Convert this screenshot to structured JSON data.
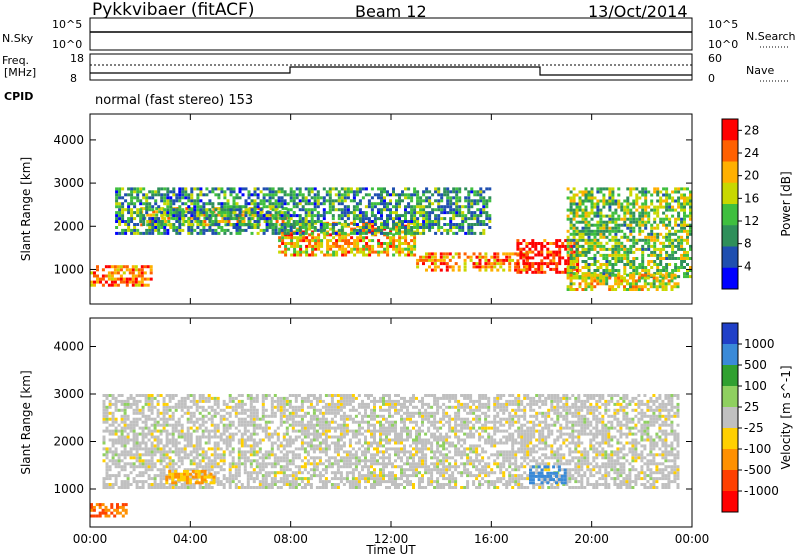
{
  "header": {
    "radar": "Pykkvibaer (fitACF)",
    "beam": "Beam 12",
    "date": "13/Oct/2014"
  },
  "top_panels": {
    "nsky_label": "N.Sky",
    "nsky_ticks": [
      "10^5",
      "10^0"
    ],
    "nsearch_label": "N.Search",
    "nsearch_ticks": [
      "10^5",
      "10^0"
    ],
    "freq_label": "Freq.",
    "freq_unit": "[MHz]",
    "freq_ticks": [
      "18",
      "8"
    ],
    "nave_label": "Nave",
    "nave_ticks": [
      "60",
      "0"
    ],
    "cpid_label": "CPID",
    "cpid_text": "normal (fast stereo) 153"
  },
  "colors": {
    "power_scale": [
      "#0000ff",
      "#1f4fb0",
      "#2f8f5a",
      "#3fbf3f",
      "#c8d800",
      "#ffb000",
      "#ff6000",
      "#ff0000"
    ],
    "velocity_scale": [
      "#2040c8",
      "#3a8ad8",
      "#30a030",
      "#8fd060",
      "#c0c0c0",
      "#ffd000",
      "#ff9000",
      "#ff4000",
      "#ff0000"
    ]
  },
  "chart_data": [
    {
      "type": "heatmap",
      "panel": "power",
      "ylabel": "Slant Range [km]",
      "xlabel": "Time UT",
      "yticks": [
        "1000",
        "2000",
        "3000",
        "4000"
      ],
      "ylim": [
        200,
        4600
      ],
      "xticks": [
        "00:00",
        "04:00",
        "08:00",
        "12:00",
        "16:00",
        "20:00",
        "00:00"
      ],
      "xlim_hours": [
        0,
        24
      ],
      "colorbar": {
        "label": "Power [dB]",
        "ticks": [
          "4",
          "8",
          "12",
          "16",
          "20",
          "24",
          "28"
        ],
        "range": [
          0,
          30
        ]
      },
      "backscatter_bands": [
        {
          "name": "near_band",
          "start_h": 0.0,
          "end_h": 2.5,
          "range_km": [
            600,
            1100
          ],
          "power_db": 24
        },
        {
          "name": "main_band_a",
          "start_h": 2.0,
          "end_h": 8.0,
          "range_km": [
            2000,
            2450
          ],
          "power_db": 18
        },
        {
          "name": "main_band_b",
          "start_h": 7.5,
          "end_h": 13.0,
          "range_km": [
            1300,
            2100
          ],
          "power_db": 20
        },
        {
          "name": "main_band_c",
          "start_h": 13.0,
          "end_h": 17.5,
          "range_km": [
            950,
            1400
          ],
          "power_db": 22
        },
        {
          "name": "enhanced_patch",
          "start_h": 17.0,
          "end_h": 19.5,
          "range_km": [
            900,
            1700
          ],
          "power_db": 28
        },
        {
          "name": "upper_diffuse",
          "start_h": 1.0,
          "end_h": 16.0,
          "range_km": [
            1800,
            2900
          ],
          "power_db": 10
        },
        {
          "name": "rising_band",
          "start_h": 19.0,
          "end_h": 24.0,
          "range_km": [
            800,
            2900
          ],
          "power_db": 14
        },
        {
          "name": "late_near",
          "start_h": 19.0,
          "end_h": 23.5,
          "range_km": [
            500,
            900
          ],
          "power_db": 18
        }
      ]
    },
    {
      "type": "heatmap",
      "panel": "velocity",
      "ylabel": "Slant Range [km]",
      "xlabel": "Time UT",
      "yticks": [
        "1000",
        "2000",
        "3000",
        "4000"
      ],
      "ylim": [
        200,
        4600
      ],
      "xticks": [
        "00:00",
        "04:00",
        "08:00",
        "12:00",
        "16:00",
        "20:00",
        "00:00"
      ],
      "xlim_hours": [
        0,
        24
      ],
      "colorbar": {
        "label": "Velocity [m s^-1]",
        "ticks": [
          "1000",
          "500",
          "100",
          "25",
          "-25",
          "-100",
          "-500",
          "-1000"
        ],
        "range": [
          -1000,
          1000
        ]
      },
      "backscatter_bands": [
        {
          "name": "ground_scatter",
          "start_h": 0.5,
          "end_h": 23.5,
          "range_km": [
            1000,
            3000
          ],
          "velocity": 0
        },
        {
          "name": "negative_patch_early",
          "start_h": 0.0,
          "end_h": 1.5,
          "range_km": [
            400,
            700
          ],
          "velocity": -500
        },
        {
          "name": "negative_patch_mid",
          "start_h": 3.0,
          "end_h": 5.0,
          "range_km": [
            1100,
            1400
          ],
          "velocity": -100
        },
        {
          "name": "positive_patch",
          "start_h": 17.5,
          "end_h": 19.0,
          "range_km": [
            1100,
            1500
          ],
          "velocity": 800
        }
      ]
    }
  ]
}
